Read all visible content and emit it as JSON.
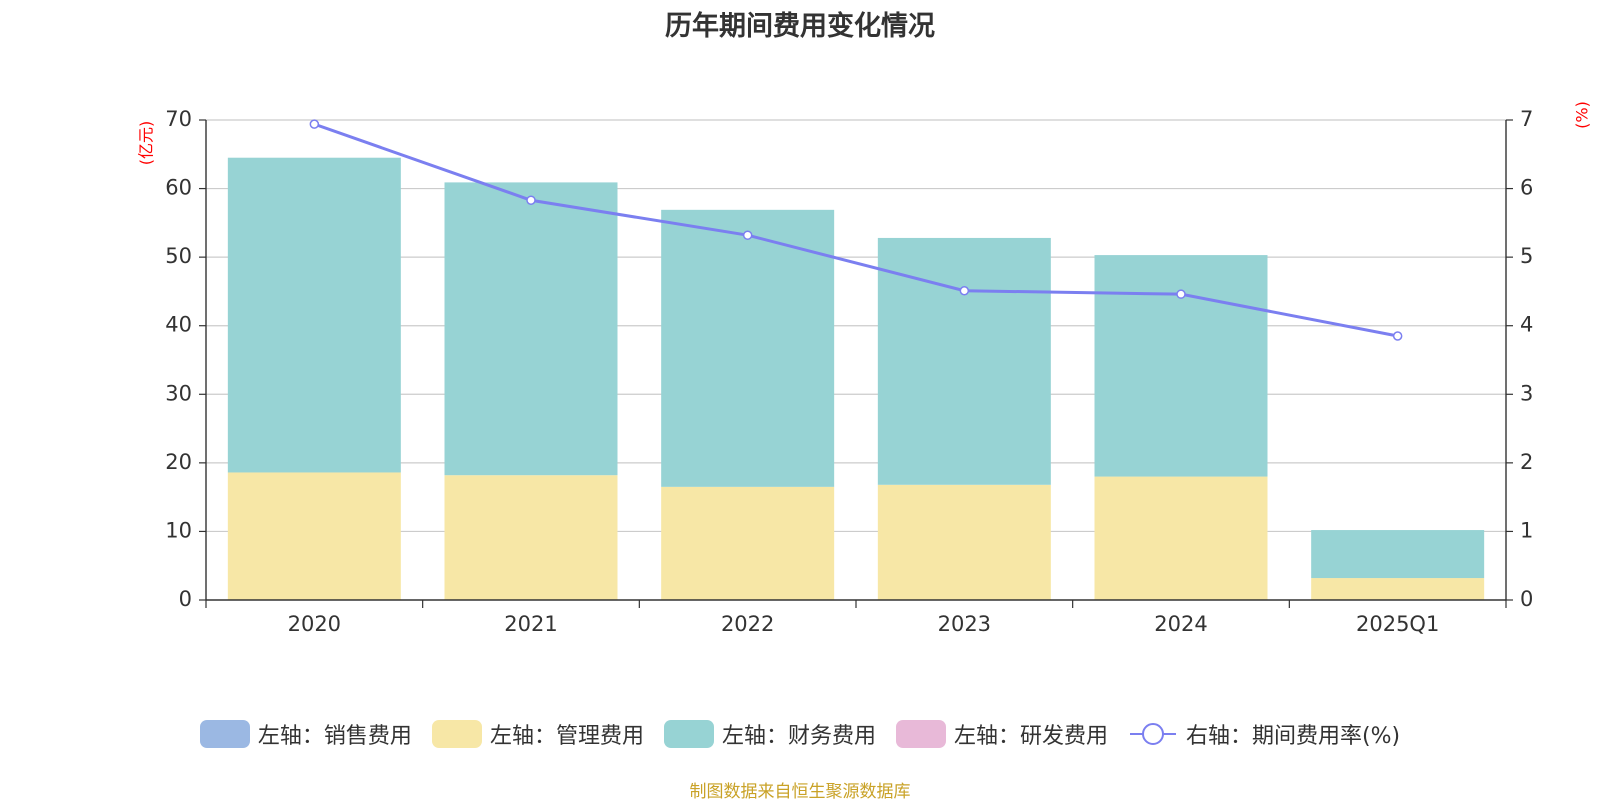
{
  "chart_data": {
    "type": "bar",
    "title": "历年期间费用变化情况",
    "categories": [
      "2020",
      "2021",
      "2022",
      "2023",
      "2024",
      "2025Q1"
    ],
    "stacked": true,
    "left_axis": {
      "label": "(亿元)",
      "ylim": [
        0,
        70
      ],
      "ticks": [
        "0",
        "10",
        "20",
        "30",
        "40",
        "50",
        "60",
        "70"
      ]
    },
    "right_axis": {
      "label": "(%)",
      "ylim": [
        0,
        7
      ],
      "ticks": [
        "0",
        "1",
        "2",
        "3",
        "4",
        "5",
        "6",
        "7"
      ]
    },
    "series": [
      {
        "name": "左轴：销售费用",
        "type": "bar",
        "axis": "left",
        "color": "#9bb8e3",
        "values": [
          0,
          0,
          0,
          0,
          0,
          0
        ]
      },
      {
        "name": "左轴：管理费用",
        "type": "bar",
        "axis": "left",
        "color": "#f7e7a6",
        "values": [
          18.6,
          18.2,
          16.5,
          16.8,
          18.0,
          3.2
        ]
      },
      {
        "name": "左轴：财务费用",
        "type": "bar",
        "axis": "left",
        "color": "#97d3d4",
        "values": [
          45.9,
          42.7,
          40.4,
          36.0,
          32.3,
          7.0
        ]
      },
      {
        "name": "左轴：研发费用",
        "type": "bar",
        "axis": "left",
        "color": "#e8b9d8",
        "values": [
          0,
          0,
          0,
          0,
          0,
          0
        ]
      },
      {
        "name": "右轴：期间费用率(%)",
        "type": "line",
        "axis": "right",
        "color": "#7b7ff0",
        "values": [
          6.94,
          5.83,
          5.32,
          4.51,
          4.46,
          3.85
        ]
      }
    ],
    "grid": true,
    "legend_position": "bottom",
    "axis_label_color": "#ff0000"
  },
  "source_note": "制图数据来自恒生聚源数据库"
}
